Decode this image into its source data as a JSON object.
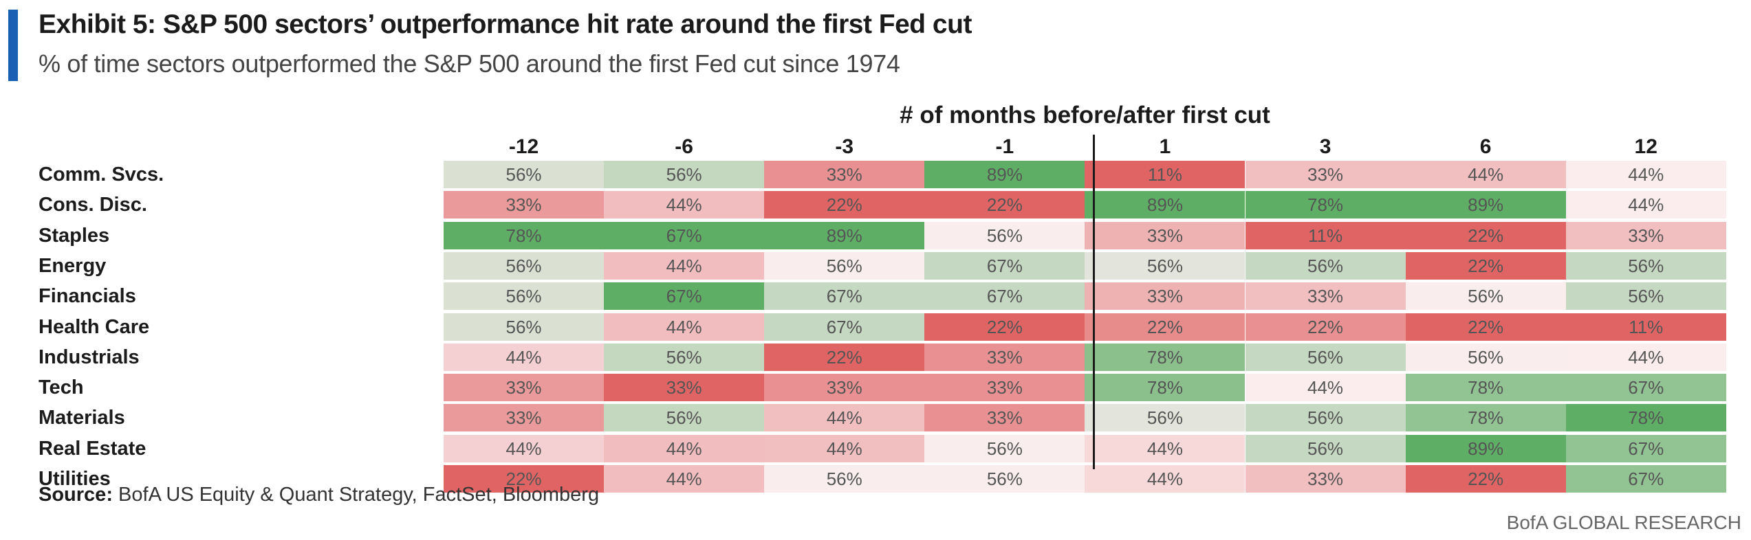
{
  "header": {
    "title": "Exhibit 5: S&P 500 sectors’ outperformance hit rate around the first Fed cut",
    "subtitle": "% of time sectors outperformed the S&P 500 around the first Fed cut since 1974"
  },
  "chart_data": {
    "type": "heatmap",
    "title": "Exhibit 5: S&P 500 sectors’ outperformance hit rate around the first Fed cut",
    "subtitle": "% of time sectors outperformed the S&P 500 around the first Fed cut since 1974",
    "column_group_label": "# of months before/after first cut",
    "columns": [
      "-12",
      "-6",
      "-3",
      "-1",
      "1",
      "3",
      "6",
      "12"
    ],
    "rows": [
      "Comm. Svcs.",
      "Cons. Disc.",
      "Staples",
      "Energy",
      "Financials",
      "Health Care",
      "Industrials",
      "Tech",
      "Materials",
      "Real Estate",
      "Utilities"
    ],
    "values": [
      [
        56,
        56,
        33,
        89,
        11,
        33,
        44,
        44
      ],
      [
        33,
        44,
        22,
        22,
        89,
        78,
        89,
        44
      ],
      [
        78,
        67,
        89,
        56,
        33,
        11,
        22,
        33
      ],
      [
        56,
        44,
        56,
        67,
        56,
        56,
        22,
        56
      ],
      [
        56,
        67,
        67,
        67,
        33,
        33,
        56,
        56
      ],
      [
        56,
        44,
        67,
        22,
        22,
        22,
        22,
        11
      ],
      [
        44,
        56,
        22,
        33,
        78,
        56,
        56,
        44
      ],
      [
        33,
        33,
        33,
        33,
        78,
        44,
        78,
        67
      ],
      [
        33,
        56,
        44,
        33,
        56,
        56,
        78,
        78
      ],
      [
        44,
        44,
        44,
        56,
        44,
        56,
        89,
        67
      ],
      [
        22,
        44,
        56,
        56,
        44,
        33,
        22,
        67
      ]
    ],
    "value_suffix": "%",
    "divider_between": [
      "-1",
      "1"
    ],
    "colors": {
      "low": "#e06464",
      "mid": "#fbeef0",
      "high": "#5fae66",
      "per_column_scale": true
    }
  },
  "footer": {
    "source_label": "Source:",
    "source_text": " BofA US Equity & Quant Strategy, FactSet, Bloomberg",
    "brand": "BofA GLOBAL RESEARCH"
  },
  "colors": {
    "accent": "#1a5fb4"
  }
}
